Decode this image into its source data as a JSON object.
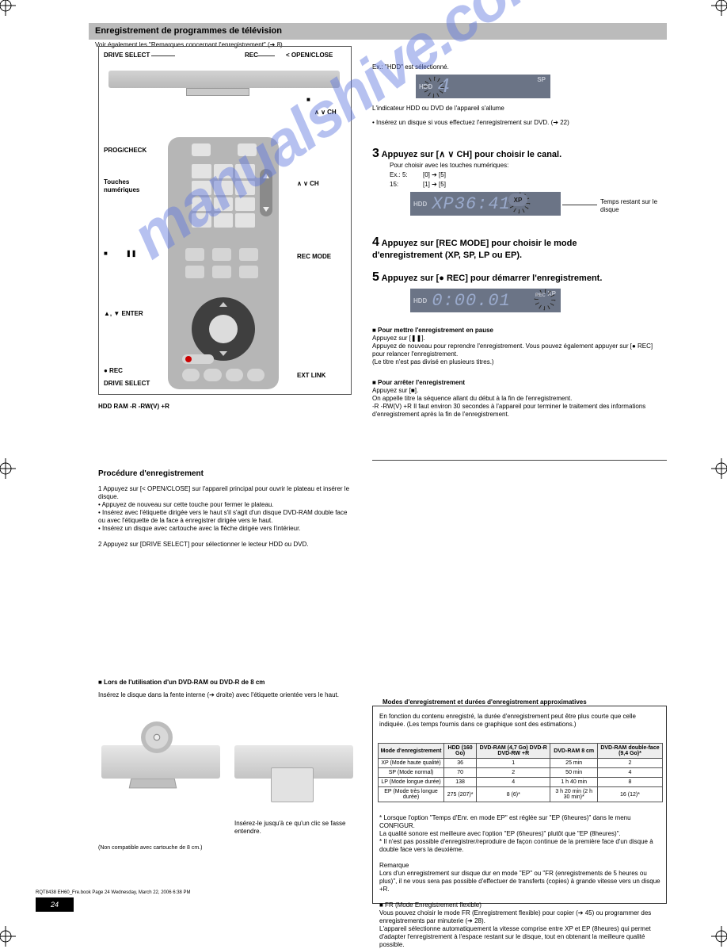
{
  "watermark": "manualshive.com",
  "header": {
    "title": "Enregistrement de programmes de télévision",
    "page_num": "24",
    "tablist": "Voir également les \"Remarques concernant l'enregistrement\" (➔ 8).",
    "hdd_ram_r_rw": "HDD  RAM  -R  -RW(V)  +R"
  },
  "labels_left": {
    "drive_select": "DRIVE SELECT",
    "rec": "REC",
    "dvd_open": "<  OPEN/CLOSE",
    "stop2": "■",
    "chsel": "∧ ∨ CH",
    "prog_check": "PROG/CHECK",
    "num_buttons": "Touches numériques",
    "ch_updown": "∧ ∨ CH",
    "rec_mode": "REC MODE",
    "ext_link": "EXT LINK",
    "stop": "■",
    "pause": "❚❚",
    "enter": "▲, ▼ ENTER",
    "rec2": "● REC",
    "drive_select2": "DRIVE SELECT"
  },
  "right_col": {
    "e1": "Ex.: \"HDD\" est sélectionné.",
    "e2": "L'indicateur HDD ou DVD de l'appareil s'allume",
    "e3": "• Insérez un disque si vous effectuez l'enregistrement sur DVD. (➔ 22)",
    "s3_title": "Appuyez sur [∧ ∨ CH] pour choisir le canal.",
    "s3_sub": "Pour choisir avec les touches numériques:",
    "ex1a": "Ex.: 5:",
    "ex1b": "[0] ➔ [5]",
    "ex2a": "15:",
    "ex2b": "[1] ➔ [5]",
    "s4_title": "Appuyez sur [REC MODE] pour choisir le mode d'enregistrement (XP, SP, LP ou EP).",
    "s5_title": "Appuyez sur [● REC] pour démarrer l'enregistrement.",
    "stop_title": "■ Pour mettre l'enregistrement en pause",
    "stop_body": "Appuyez sur [❚❚].\nAppuyez de nouveau pour reprendre l'enregistrement. Vous pouvez également appuyer sur [● REC] pour relancer l'enregistrement.\n(Le titre n'est pas divisé en plusieurs titres.)",
    "stop2_title": "■ Pour arrêter l'enregistrement",
    "stop2_body": "Appuyez sur [■].\nOn appelle titre la séquence allant du début à la fin de l'enregistrement.\n-R  -RW(V)  +R  Il faut environ 30 secondes à l'appareil pour terminer le traitement des informations d'enregistrement après la fin de l'enregistrement."
  },
  "lcd": {
    "panel1": "HDD",
    "panel1_mode": "SP",
    "panel1_digits": "4",
    "panel2": "HDD",
    "panel2_mode": "XP",
    "panel2_digits": "XP36:41",
    "panel2_note": "Temps restant sur le disque",
    "panel3": "HDD",
    "panel3_mode": "XP",
    "panel3_digits": "0:00.01",
    "panel3_rec": "REC"
  },
  "bottom_left": {
    "insert_title": "■ Lors de l'utilisation d'un DVD-RAM ou DVD-R de 8 cm",
    "body1": "Insérez le disque dans la fente interne (➔ droite) avec l'étiquette orientée vers le haut.",
    "body2": "Insérez-le jusqu'à ce qu'un clic se fasse entendre.",
    "note": "(Non compatible avec cartouche de 8 cm.)",
    "body3": "1  Appuyez sur [< OPEN/CLOSE] sur l'appareil principal pour ouvrir le plateau et insérer le disque.\n• Appuyez de nouveau sur cette touche pour fermer le plateau.\n• Insérez avec l'étiquette dirigée vers le haut s'il s'agit d'un disque DVD-RAM double face ou avec l'étiquette de la face à enregistrer dirigée vers le haut.\n• Insérez un disque avec cartouche avec la flèche dirigée vers l'intérieur.\n\n2  Appuyez sur [DRIVE SELECT] pour sélectionner le lecteur HDD ou DVD.",
    "proc_title": "Procédure d'enregistrement"
  },
  "modes_box": {
    "title": "Modes d'enregistrement et durées d'enregistrement approximatives",
    "intro": "En fonction du contenu enregistré, la durée d'enregistrement peut être plus courte que celle indiquée. (Les temps fournis dans ce graphique sont des estimations.)",
    "columns": [
      "Mode d'enregistrement",
      "HDD (160 Go)",
      "DVD-RAM (4,7 Go) DVD-R DVD-RW +R",
      "DVD-RAM 8 cm",
      "DVD-RAM double-face (9,4 Go)*"
    ],
    "rows": [
      [
        "XP (Mode haute qualité)",
        "36",
        "1",
        "25 min",
        "2"
      ],
      [
        "SP (Mode normal)",
        "70",
        "2",
        "50 min",
        "4"
      ],
      [
        "LP (Mode longue durée)",
        "138",
        "4",
        "1 h 40 min",
        "8"
      ],
      [
        "EP (Mode très longue durée)",
        "275 (207)*",
        "8 (6)*",
        "3 h 20 min (2 h 30 min)*",
        "16 (12)*"
      ]
    ],
    "foot": "* Lorsque l'option \"Temps d'Enr. en mode EP\" est réglée sur \"EP (6heures)\" dans le menu CONFIGUR.\nLa qualité sonore est meilleure avec l'option \"EP (6heures)\" plutôt que \"EP (8heures)\".\n* Il n'est pas possible d'enregistrer/reproduire de façon continue de la première face d'un disque à double face vers la deuxième.\n\nRemarque\nLors d'un enregistrement sur disque dur en mode \"EP\" ou \"FR (enregistrements de 5 heures ou plus)\", il ne vous sera pas possible d'effectuer de transferts (copies) à grande vitesse vers un disque +R.\n\n■ FR (Mode Enregistrement flexible)\nVous pouvez choisir le mode FR (Enregistrement flexible) pour copier (➔ 45) ou programmer des enregistrements par minuterie (➔ 28).\nL'appareil sélectionne automatiquement la vitesse comprise entre XP et EP (8heures) qui permet d'adapter l'enregistrement à l'espace restant sur le disque, tout en obtenant la meilleure qualité possible."
  },
  "footer_line": "RQT8438\nEH60_Fre.book  Page 24  Wednesday, March 22, 2006  6:38 PM"
}
